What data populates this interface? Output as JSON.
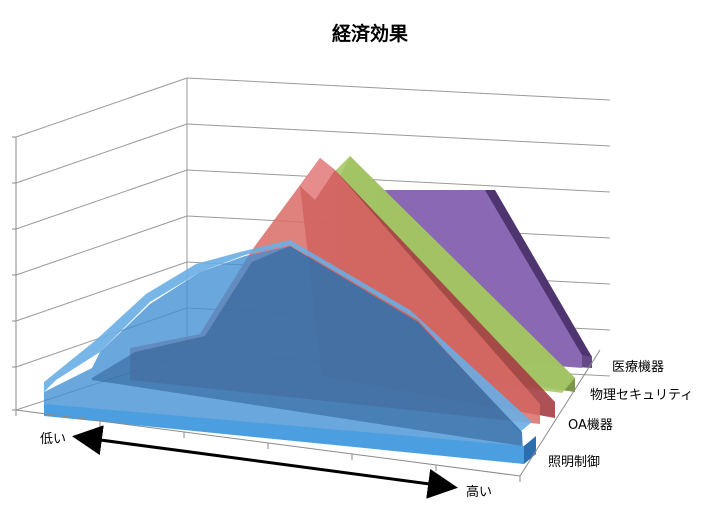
{
  "chart_data": {
    "type": "area",
    "title": "経済効果",
    "view": "3d",
    "x_axis_start_label": "低い",
    "x_axis_end_label": "高い",
    "grid": true,
    "series": [
      {
        "name": "医療機器",
        "color": "#7E5BA8"
      },
      {
        "name": "物理セキュリティ",
        "color": "#9BBB59"
      },
      {
        "name": "OA機器",
        "color": "#D9585B"
      },
      {
        "name": "照明制御",
        "color": "#3A8FD4"
      }
    ]
  }
}
